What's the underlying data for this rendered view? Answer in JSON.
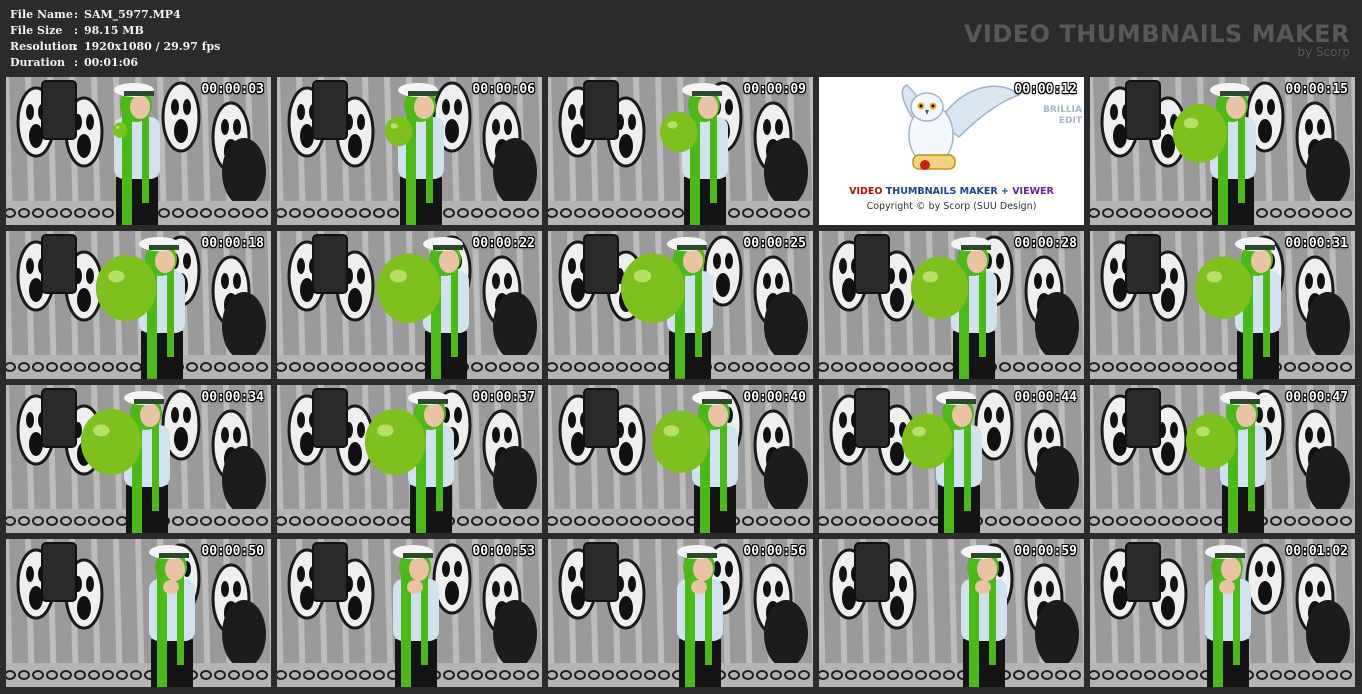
{
  "file_info": {
    "rows": [
      {
        "key": "File Name",
        "sep": ":",
        "value": "SAM_5977.MP4"
      },
      {
        "key": "File Size",
        "sep": ":",
        "value": "98.15 MB"
      },
      {
        "key": "Resolution",
        "sep": ":",
        "value": "1920x1080 / 29.97 fps"
      },
      {
        "key": "Duration",
        "sep": ":",
        "value": "00:01:06"
      }
    ]
  },
  "brand": {
    "title": "VIDEO THUMBNAILS MAKER",
    "subtitle": "by Scorp",
    "color": "#585858"
  },
  "logo_tile": {
    "line1_a": "VIDEO",
    "line1_b": " THUMBNAILS MAKER + ",
    "line1_c": "VIEWER",
    "line2": "Copyright © by Scorp (SUU Design)",
    "side": [
      "BRILLIA",
      "EDIT"
    ],
    "icon": "owl-with-scroll-icon"
  },
  "colors": {
    "background": "#2b2b2b",
    "balloon": "#7ec01e",
    "hair": "#4cb81a",
    "wall": "#9a9a9a"
  },
  "thumbnails": [
    {
      "time": "00:00:03",
      "balloon": 0.05,
      "type": "frame"
    },
    {
      "time": "00:00:06",
      "balloon": 0.25,
      "type": "frame"
    },
    {
      "time": "00:00:09",
      "balloon": 0.4,
      "type": "frame"
    },
    {
      "time": "00:00:12",
      "balloon": 0,
      "type": "logo"
    },
    {
      "time": "00:00:15",
      "balloon": 0.65,
      "type": "frame"
    },
    {
      "time": "00:00:18",
      "balloon": 0.75,
      "type": "frame"
    },
    {
      "time": "00:00:22",
      "balloon": 0.8,
      "type": "frame"
    },
    {
      "time": "00:00:25",
      "balloon": 0.8,
      "type": "frame"
    },
    {
      "time": "00:00:28",
      "balloon": 0.7,
      "type": "frame"
    },
    {
      "time": "00:00:31",
      "balloon": 0.7,
      "type": "frame"
    },
    {
      "time": "00:00:34",
      "balloon": 0.75,
      "type": "frame"
    },
    {
      "time": "00:00:37",
      "balloon": 0.75,
      "type": "frame"
    },
    {
      "time": "00:00:40",
      "balloon": 0.7,
      "type": "frame"
    },
    {
      "time": "00:00:44",
      "balloon": 0.6,
      "type": "frame"
    },
    {
      "time": "00:00:47",
      "balloon": 0.6,
      "type": "frame"
    },
    {
      "time": "00:00:50",
      "balloon": 0,
      "type": "frame"
    },
    {
      "time": "00:00:53",
      "balloon": 0,
      "type": "frame"
    },
    {
      "time": "00:00:56",
      "balloon": 0,
      "type": "frame"
    },
    {
      "time": "00:00:59",
      "balloon": 0,
      "type": "frame"
    },
    {
      "time": "00:01:02",
      "balloon": 0,
      "type": "frame"
    }
  ]
}
